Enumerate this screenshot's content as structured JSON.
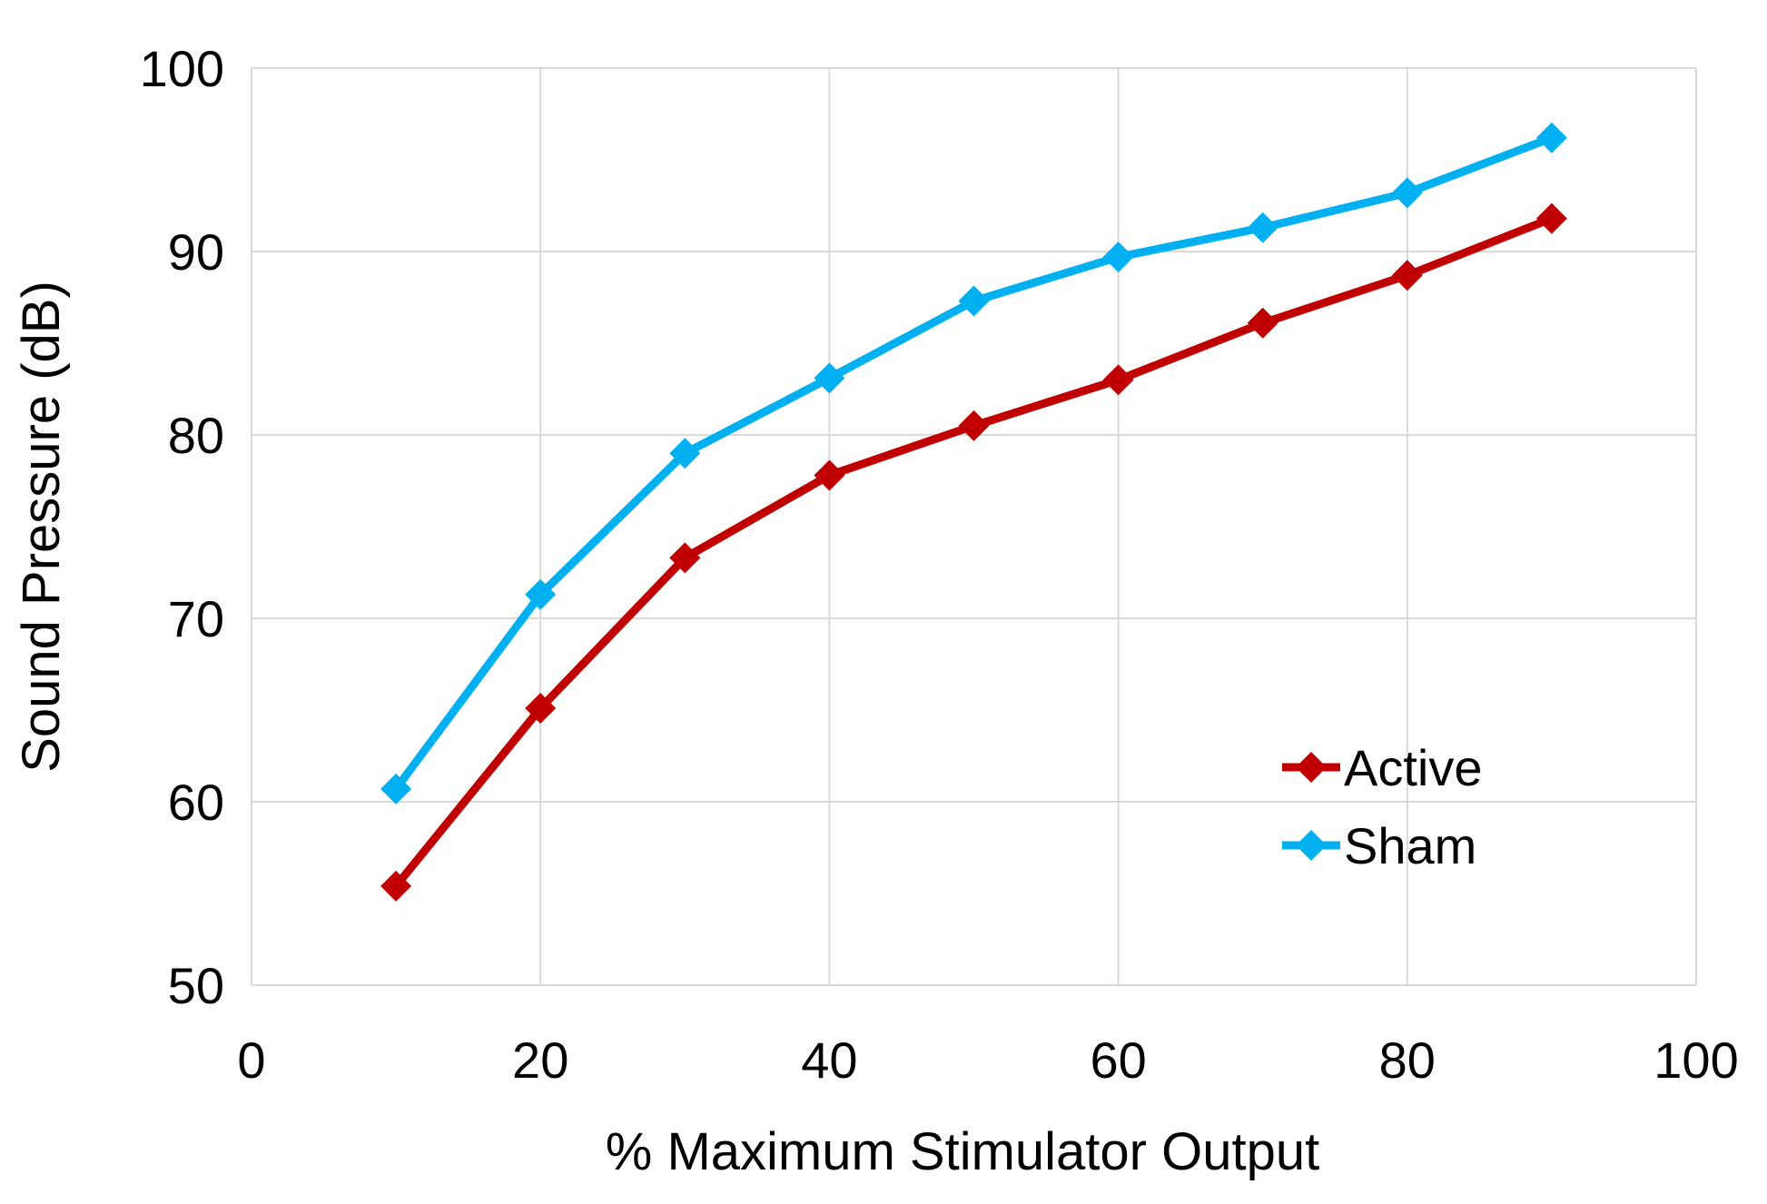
{
  "chart_data": {
    "type": "line",
    "title": "",
    "xlabel": "% Maximum Stimulator Output",
    "ylabel": "Sound Pressure (dB)",
    "xlim": [
      0,
      100
    ],
    "ylim": [
      50,
      100
    ],
    "xticks": [
      0,
      20,
      40,
      60,
      80,
      100
    ],
    "yticks": [
      50,
      60,
      70,
      80,
      90,
      100
    ],
    "grid": true,
    "legend_position": "bottom-right",
    "x": [
      10,
      20,
      30,
      40,
      50,
      60,
      70,
      80,
      90
    ],
    "series": [
      {
        "name": "Active",
        "color": "#c00000",
        "values": [
          55.4,
          65.1,
          73.3,
          77.8,
          80.5,
          83.0,
          86.1,
          88.7,
          91.8
        ]
      },
      {
        "name": "Sham",
        "color": "#00b0f0",
        "values": [
          60.7,
          71.3,
          79.0,
          83.1,
          87.3,
          89.7,
          91.3,
          93.2,
          96.2
        ]
      }
    ]
  }
}
